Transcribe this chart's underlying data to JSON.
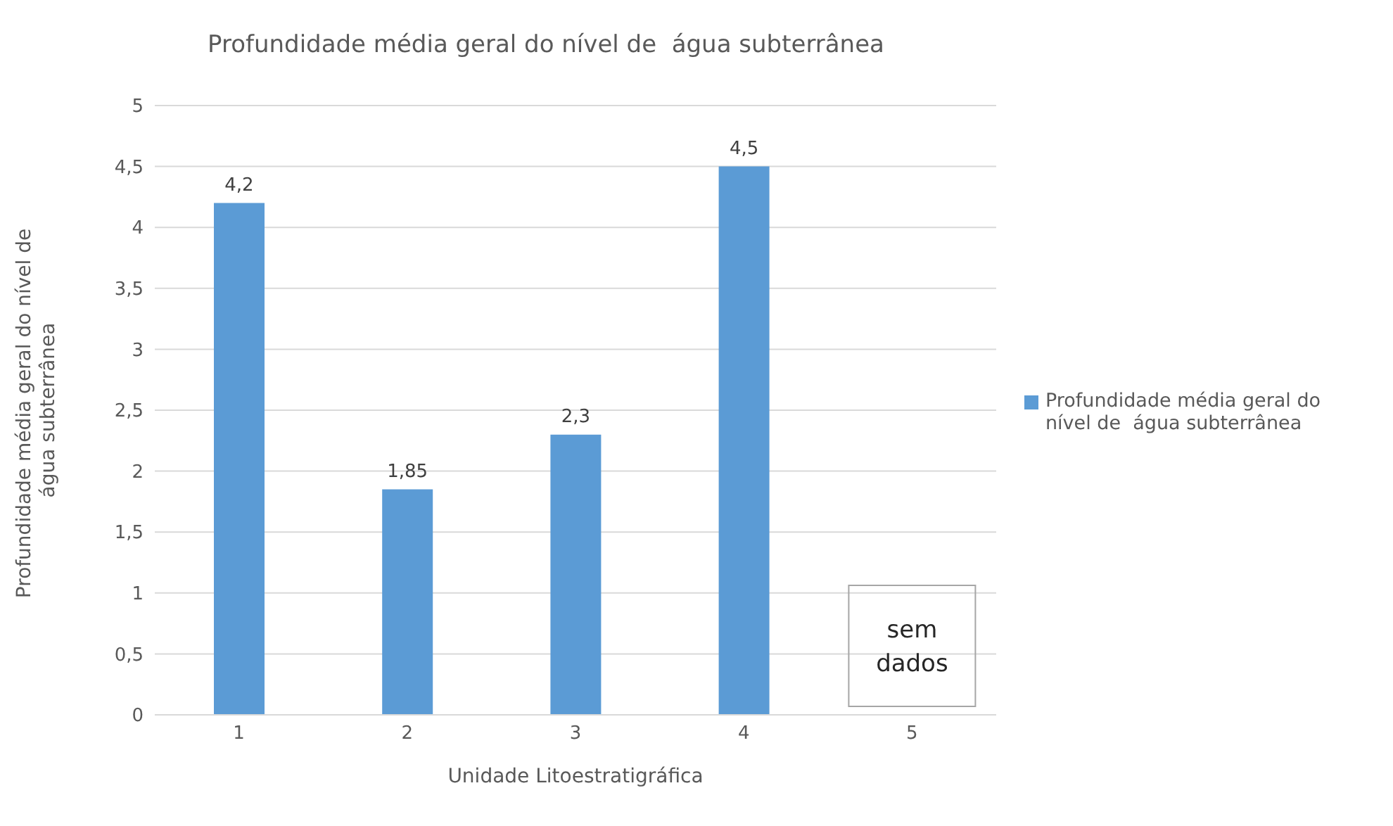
{
  "chart_data": {
    "type": "bar",
    "title": "Profundidade média geral do nível de  água subterrânea",
    "xlabel": "Unidade Litoestratigráfica",
    "ylabel": "Profundidade média geral do nível de  água subterrânea",
    "categories": [
      "1",
      "2",
      "3",
      "4",
      "5"
    ],
    "series": [
      {
        "name": "Profundidade média geral do nível de  água subterrânea",
        "color": "#5b9bd5",
        "values": [
          4.2,
          1.85,
          2.3,
          4.5,
          null
        ],
        "value_labels": [
          "4,2",
          "1,85",
          "2,3",
          "4,5",
          null
        ]
      }
    ],
    "ylim": [
      0,
      5
    ],
    "yticks": [
      0,
      {
        "value": 0.5,
        "label": "0,5"
      },
      1,
      {
        "value": 1.5,
        "label": "1,5"
      },
      2,
      {
        "value": 2.5,
        "label": "2,5"
      },
      3,
      {
        "value": 3.5,
        "label": "3,5"
      },
      4,
      {
        "value": 4.5,
        "label": "4,5"
      },
      5
    ],
    "grid": "y",
    "legend": "right",
    "annotations": [
      "sem dados"
    ]
  }
}
